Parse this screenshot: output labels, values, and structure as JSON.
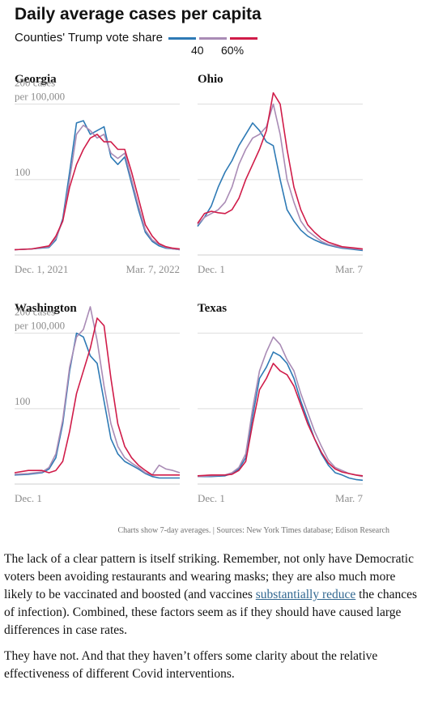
{
  "header": {
    "title": "Daily average cases per capita",
    "legend_label": "Counties' Trump vote share",
    "legend_low": "40",
    "legend_high": "60%"
  },
  "colors": {
    "blue": "#2e7ab5",
    "purple": "#a98bb5",
    "red": "#d01c49",
    "grid": "#dddddd",
    "axis_text": "#8c8c8c"
  },
  "chart_data": [
    {
      "type": "line",
      "title": "Georgia",
      "ylabel": "200 cases per 100,000",
      "ytick_labels": [
        "100",
        "200 cases per 100,000"
      ],
      "yticks": [
        100,
        200
      ],
      "ylim": [
        0,
        220
      ],
      "grid": true,
      "x_tick_labels": [
        "Dec. 1, 2021",
        "Mar. 7, 2022"
      ],
      "xlim": [
        0,
        96
      ],
      "series": [
        {
          "name": "40",
          "color": "blue",
          "x": [
            0,
            10,
            20,
            24,
            28,
            32,
            36,
            40,
            44,
            48,
            52,
            56,
            60,
            64,
            68,
            72,
            76,
            80,
            84,
            88,
            92,
            96
          ],
          "y": [
            7,
            8,
            10,
            20,
            48,
            110,
            175,
            178,
            160,
            165,
            170,
            130,
            120,
            130,
            95,
            60,
            30,
            18,
            12,
            9,
            8,
            7
          ]
        },
        {
          "name": "",
          "color": "purple",
          "x": [
            0,
            10,
            20,
            24,
            28,
            32,
            36,
            40,
            44,
            48,
            52,
            56,
            60,
            64,
            68,
            72,
            76,
            80,
            84,
            88,
            92,
            96
          ],
          "y": [
            7,
            8,
            11,
            22,
            45,
            100,
            160,
            172,
            165,
            155,
            160,
            135,
            128,
            135,
            100,
            65,
            33,
            20,
            14,
            10,
            8,
            7
          ]
        },
        {
          "name": "60%",
          "color": "red",
          "x": [
            0,
            10,
            20,
            24,
            28,
            32,
            36,
            40,
            44,
            48,
            52,
            56,
            60,
            64,
            68,
            72,
            76,
            80,
            84,
            88,
            92,
            96
          ],
          "y": [
            7,
            8,
            12,
            25,
            45,
            90,
            120,
            140,
            155,
            160,
            150,
            150,
            140,
            140,
            110,
            75,
            40,
            25,
            15,
            11,
            9,
            8
          ]
        }
      ]
    },
    {
      "type": "line",
      "title": "Ohio",
      "ylabel": "",
      "ytick_labels": [],
      "yticks": [
        100,
        200
      ],
      "ylim": [
        0,
        220
      ],
      "grid": true,
      "x_tick_labels": [
        "Dec. 1",
        "Mar. 7"
      ],
      "xlim": [
        0,
        96
      ],
      "series": [
        {
          "name": "40",
          "color": "blue",
          "x": [
            0,
            4,
            8,
            12,
            16,
            20,
            24,
            28,
            32,
            36,
            40,
            44,
            48,
            52,
            56,
            60,
            64,
            68,
            72,
            76,
            80,
            84,
            88,
            92,
            96
          ],
          "y": [
            38,
            50,
            65,
            90,
            110,
            125,
            145,
            160,
            175,
            165,
            150,
            145,
            100,
            60,
            45,
            33,
            25,
            20,
            16,
            13,
            11,
            9,
            8,
            7,
            6
          ]
        },
        {
          "name": "",
          "color": "purple",
          "x": [
            0,
            4,
            8,
            12,
            16,
            20,
            24,
            28,
            32,
            36,
            40,
            44,
            48,
            52,
            56,
            60,
            64,
            68,
            72,
            76,
            80,
            84,
            88,
            92,
            96
          ],
          "y": [
            40,
            50,
            55,
            60,
            70,
            90,
            120,
            140,
            155,
            160,
            170,
            200,
            160,
            100,
            70,
            45,
            32,
            25,
            18,
            14,
            12,
            10,
            9,
            8,
            7
          ]
        },
        {
          "name": "60%",
          "color": "red",
          "x": [
            0,
            4,
            8,
            12,
            16,
            20,
            24,
            28,
            32,
            36,
            40,
            44,
            48,
            52,
            56,
            60,
            64,
            68,
            72,
            76,
            80,
            84,
            88,
            92,
            96
          ],
          "y": [
            42,
            55,
            58,
            56,
            55,
            60,
            75,
            100,
            120,
            140,
            165,
            215,
            200,
            140,
            90,
            60,
            40,
            30,
            22,
            17,
            14,
            11,
            10,
            9,
            8
          ]
        }
      ]
    },
    {
      "type": "line",
      "title": "Washington",
      "ylabel": "200 cases per 100,000",
      "ytick_labels": [
        "100",
        "200 cases per 100,000"
      ],
      "yticks": [
        100,
        200
      ],
      "ylim": [
        0,
        220
      ],
      "grid": true,
      "x_tick_labels": [
        "Dec. 1"
      ],
      "xlim": [
        0,
        96
      ],
      "series": [
        {
          "name": "40",
          "color": "blue",
          "x": [
            0,
            8,
            16,
            20,
            24,
            28,
            32,
            36,
            40,
            44,
            48,
            52,
            56,
            60,
            64,
            68,
            72,
            76,
            80,
            84,
            88,
            92,
            96
          ],
          "y": [
            12,
            13,
            15,
            20,
            35,
            80,
            150,
            200,
            195,
            170,
            160,
            110,
            60,
            40,
            30,
            25,
            20,
            14,
            10,
            8,
            8,
            8,
            8
          ]
        },
        {
          "name": "",
          "color": "purple",
          "x": [
            0,
            8,
            16,
            20,
            24,
            28,
            32,
            36,
            40,
            44,
            48,
            52,
            56,
            60,
            64,
            68,
            72,
            76,
            80,
            84,
            88,
            92,
            96
          ],
          "y": [
            13,
            14,
            16,
            22,
            40,
            85,
            155,
            195,
            205,
            235,
            190,
            130,
            80,
            50,
            35,
            28,
            22,
            15,
            12,
            25,
            20,
            18,
            15
          ]
        },
        {
          "name": "60%",
          "color": "red",
          "x": [
            0,
            8,
            16,
            20,
            24,
            28,
            32,
            36,
            40,
            44,
            48,
            52,
            56,
            60,
            64,
            68,
            72,
            76,
            80,
            84,
            88,
            92,
            96
          ],
          "y": [
            15,
            18,
            18,
            15,
            18,
            30,
            70,
            120,
            150,
            180,
            220,
            210,
            140,
            80,
            50,
            35,
            25,
            18,
            12,
            12,
            12,
            12,
            12
          ]
        }
      ]
    },
    {
      "type": "line",
      "title": "Texas",
      "ylabel": "",
      "ytick_labels": [],
      "yticks": [
        100,
        200
      ],
      "ylim": [
        0,
        220
      ],
      "grid": true,
      "x_tick_labels": [
        "Dec. 1",
        "Mar. 7"
      ],
      "xlim": [
        0,
        96
      ],
      "series": [
        {
          "name": "40",
          "color": "blue",
          "x": [
            0,
            8,
            16,
            20,
            24,
            28,
            32,
            36,
            40,
            44,
            48,
            52,
            56,
            60,
            64,
            68,
            72,
            76,
            80,
            84,
            88,
            92,
            96
          ],
          "y": [
            10,
            10,
            11,
            14,
            20,
            35,
            90,
            140,
            155,
            175,
            170,
            160,
            140,
            110,
            85,
            60,
            40,
            25,
            15,
            12,
            8,
            6,
            5
          ]
        },
        {
          "name": "",
          "color": "purple",
          "x": [
            0,
            8,
            16,
            20,
            24,
            28,
            32,
            36,
            40,
            44,
            48,
            52,
            56,
            60,
            64,
            68,
            72,
            76,
            80,
            84,
            88,
            92,
            96
          ],
          "y": [
            10,
            11,
            12,
            15,
            22,
            40,
            100,
            150,
            175,
            195,
            185,
            165,
            150,
            120,
            95,
            70,
            50,
            32,
            22,
            18,
            14,
            12,
            10
          ]
        },
        {
          "name": "60%",
          "color": "red",
          "x": [
            0,
            8,
            16,
            20,
            24,
            28,
            32,
            36,
            40,
            44,
            48,
            52,
            56,
            60,
            64,
            68,
            72,
            76,
            80,
            84,
            88,
            92,
            96
          ],
          "y": [
            11,
            12,
            12,
            13,
            18,
            30,
            80,
            125,
            140,
            160,
            150,
            145,
            130,
            105,
            80,
            60,
            42,
            28,
            20,
            16,
            14,
            12,
            11
          ]
        }
      ]
    }
  ],
  "source_note": "Charts show 7-day averages. | Sources: New York Times database; Edison Research",
  "article": {
    "p1_before": "The lack of a clear pattern is itself striking. Remember, not only have Democratic voters been avoiding restaurants and wearing masks; they are also much more likely to be vaccinated and boosted (and vaccines ",
    "p1_link": "substantially reduce",
    "p1_after": " the chances of infection). Combined, these factors seem as if they should have caused large differences in case rates.",
    "p2": "They have not. And that they haven’t offers some clarity about the relative effectiveness of different Covid interventions."
  }
}
